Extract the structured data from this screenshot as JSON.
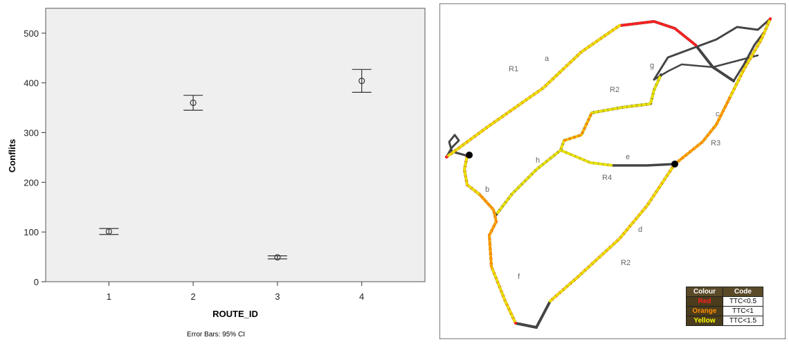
{
  "chart_data": {
    "type": "scatter",
    "subtype": "error-bar",
    "categories": [
      "1",
      "2",
      "3",
      "4"
    ],
    "series": [
      {
        "values": [
          101,
          360,
          49,
          404
        ],
        "ci_low": [
          95,
          345,
          46,
          381
        ],
        "ci_high": [
          107,
          375,
          52,
          427
        ]
      }
    ],
    "xlabel": "ROUTE_ID",
    "ylabel": "Conflits",
    "ylim": [
      0,
      550
    ],
    "yticks": [
      0,
      100,
      200,
      300,
      400,
      500
    ],
    "grid": false,
    "note": "Error Bars: 95% CI",
    "plot_background": "#efefef"
  },
  "map": {
    "route_labels": [
      "R1",
      "R2",
      "R2",
      "R3",
      "R4"
    ],
    "segment_labels": [
      "a",
      "b",
      "c",
      "d",
      "e",
      "f",
      "g",
      "h"
    ],
    "legend": {
      "headers": [
        "Colour",
        "Code"
      ],
      "rows": [
        {
          "colour": "Red",
          "code": "TTC<0.5",
          "color_hex": "#ff2020"
        },
        {
          "colour": "Orange",
          "code": "TTC<1",
          "color_hex": "#ff8c00"
        },
        {
          "colour": "Yellow",
          "code": "TTC<1.5",
          "color_hex": "#ffff00"
        }
      ]
    }
  }
}
